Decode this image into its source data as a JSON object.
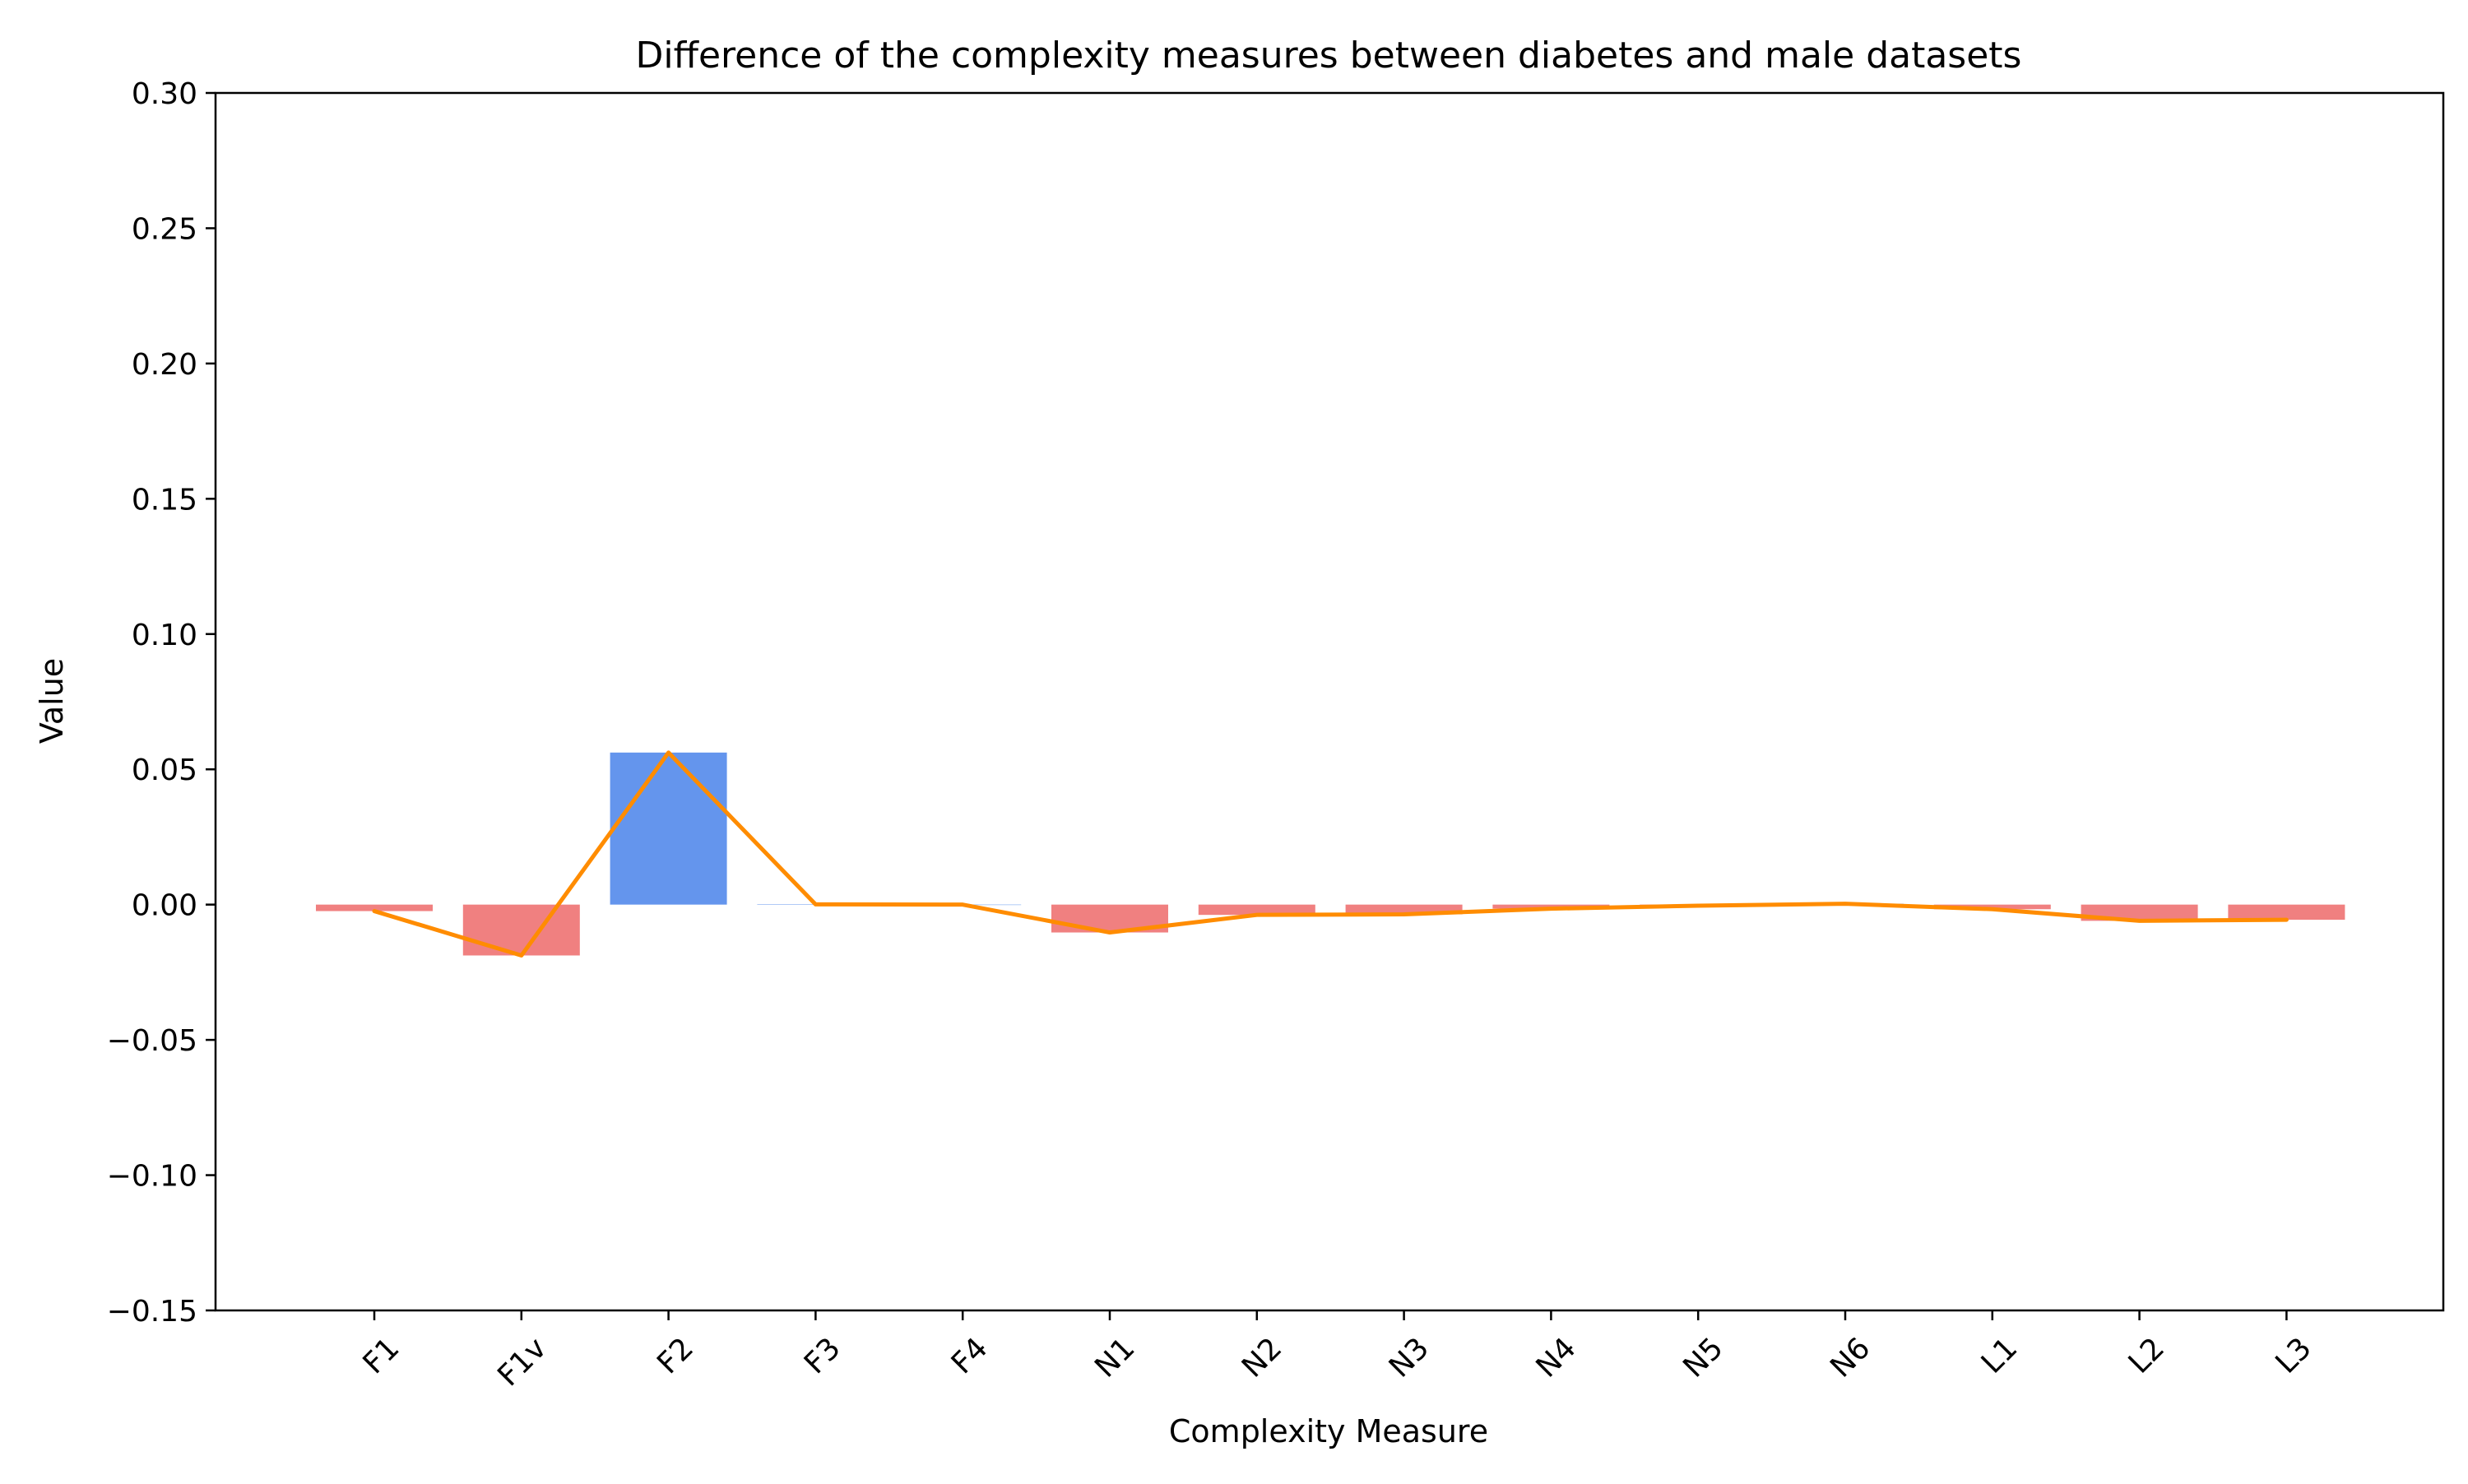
{
  "chart_data": {
    "type": "bar",
    "title": "Difference of the complexity measures between diabetes and male datasets",
    "xlabel": "Complexity Measure",
    "ylabel": "Value",
    "ylim": [
      -0.15,
      0.3
    ],
    "yticks": [
      -0.15,
      -0.1,
      -0.05,
      0.0,
      0.05,
      0.1,
      0.15,
      0.2,
      0.25,
      0.3
    ],
    "ytick_labels": [
      "−0.15",
      "−0.10",
      "−0.05",
      "0.00",
      "0.05",
      "0.10",
      "0.15",
      "0.20",
      "0.25",
      "0.30"
    ],
    "categories": [
      "F1",
      "F1v",
      "F2",
      "F3",
      "F4",
      "N1",
      "N2",
      "N3",
      "N4",
      "N5",
      "N6",
      "L1",
      "L2",
      "L3"
    ],
    "values": [
      -0.0024,
      -0.0188,
      0.0562,
      0.0001,
      0.0,
      -0.0103,
      -0.0038,
      -0.0036,
      -0.0015,
      -0.0004,
      0.0003,
      -0.0017,
      -0.006,
      -0.0056
    ],
    "grid": false,
    "legend": "none",
    "colors": {
      "positive_bar": "#6495ED",
      "negative_bar": "#F08080",
      "line": "#FF8C00",
      "axis": "#000000",
      "background": "#FFFFFF"
    }
  }
}
